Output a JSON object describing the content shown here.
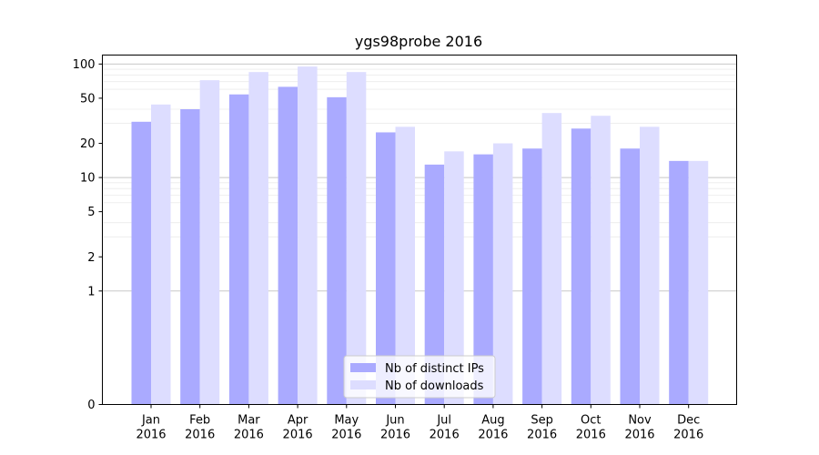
{
  "chart_data": {
    "type": "bar",
    "title": "ygs98probe 2016",
    "xlabel": "",
    "ylabel": "",
    "yscale": "symlog",
    "ylim": [
      0,
      120
    ],
    "yticks": [
      0,
      1,
      2,
      5,
      10,
      20,
      50,
      100
    ],
    "ytick_labels": [
      "0",
      "1",
      "2",
      "5",
      "10",
      "20",
      "50",
      "100"
    ],
    "categories": [
      "Jan\n2016",
      "Feb\n2016",
      "Mar\n2016",
      "Apr\n2016",
      "May\n2016",
      "Jun\n2016",
      "Jul\n2016",
      "Aug\n2016",
      "Sep\n2016",
      "Oct\n2016",
      "Nov\n2016",
      "Dec\n2016"
    ],
    "category_lines": [
      [
        "Jan",
        "2016"
      ],
      [
        "Feb",
        "2016"
      ],
      [
        "Mar",
        "2016"
      ],
      [
        "Apr",
        "2016"
      ],
      [
        "May",
        "2016"
      ],
      [
        "Jun",
        "2016"
      ],
      [
        "Jul",
        "2016"
      ],
      [
        "Aug",
        "2016"
      ],
      [
        "Sep",
        "2016"
      ],
      [
        "Oct",
        "2016"
      ],
      [
        "Nov",
        "2016"
      ],
      [
        "Dec",
        "2016"
      ]
    ],
    "series": [
      {
        "name": "Nb of distinct IPs",
        "color": "#aaaaff",
        "values": [
          31,
          40,
          54,
          63,
          51,
          25,
          13,
          16,
          18,
          27,
          18,
          14
        ]
      },
      {
        "name": "Nb of downloads",
        "color": "#ddddff",
        "values": [
          44,
          72,
          85,
          95,
          85,
          28,
          17,
          20,
          37,
          35,
          28,
          14
        ]
      }
    ],
    "legend": {
      "position": "bottom-center"
    },
    "grid": {
      "y_major": true,
      "y_minor": true
    }
  }
}
